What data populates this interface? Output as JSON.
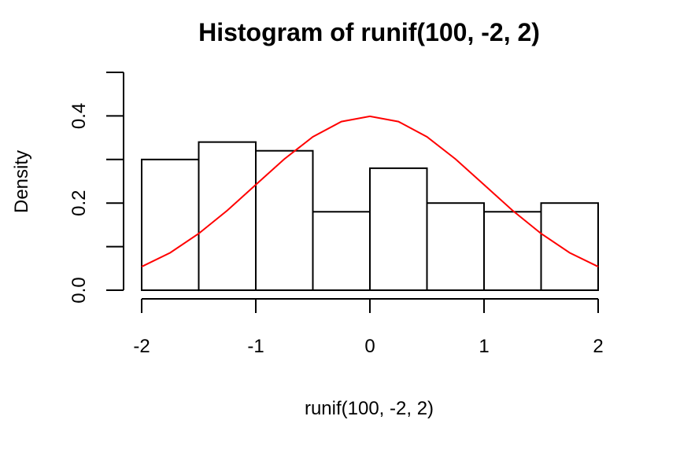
{
  "chart_data": {
    "type": "bar",
    "title": "Histogram of runif(100, -2, 2)",
    "xlabel": "runif(100, -2, 2)",
    "ylabel": "Density",
    "xlim": [
      -2,
      2
    ],
    "ylim": [
      0,
      0.5
    ],
    "grid": false,
    "bins": [
      {
        "start": -2.0,
        "end": -1.5,
        "density": 0.3
      },
      {
        "start": -1.5,
        "end": -1.0,
        "density": 0.34
      },
      {
        "start": -1.0,
        "end": -0.5,
        "density": 0.32
      },
      {
        "start": -0.5,
        "end": 0.0,
        "density": 0.18
      },
      {
        "start": 0.0,
        "end": 0.5,
        "density": 0.28
      },
      {
        "start": 0.5,
        "end": 1.0,
        "density": 0.2
      },
      {
        "start": 1.0,
        "end": 1.5,
        "density": 0.18
      },
      {
        "start": 1.5,
        "end": 2.0,
        "density": 0.2
      }
    ],
    "x_ticks": [
      -2,
      -1,
      0,
      1,
      2
    ],
    "x_tick_labels": [
      "-2",
      "-1",
      "0",
      "1",
      "2"
    ],
    "y_ticks": [
      0,
      0.1,
      0.2,
      0.3,
      0.4,
      0.5
    ],
    "y_tick_labels": [
      "0.0",
      "0.2",
      "0.4"
    ],
    "y_labeled_ticks": [
      0,
      0.2,
      0.4
    ],
    "series": [
      {
        "type": "line",
        "color": "#ff0000",
        "x": [
          -2.0,
          -1.75,
          -1.5,
          -1.25,
          -1.0,
          -0.75,
          -0.5,
          -0.25,
          0.0,
          0.25,
          0.5,
          0.75,
          1.0,
          1.25,
          1.5,
          1.75,
          2.0
        ],
        "y": [
          0.054,
          0.086,
          0.13,
          0.183,
          0.242,
          0.301,
          0.352,
          0.387,
          0.399,
          0.387,
          0.352,
          0.301,
          0.242,
          0.183,
          0.13,
          0.086,
          0.054
        ]
      }
    ],
    "colors": {
      "bar_fill": "#ffffff",
      "bar_stroke": "#000000",
      "curve": "#ff0000"
    }
  }
}
